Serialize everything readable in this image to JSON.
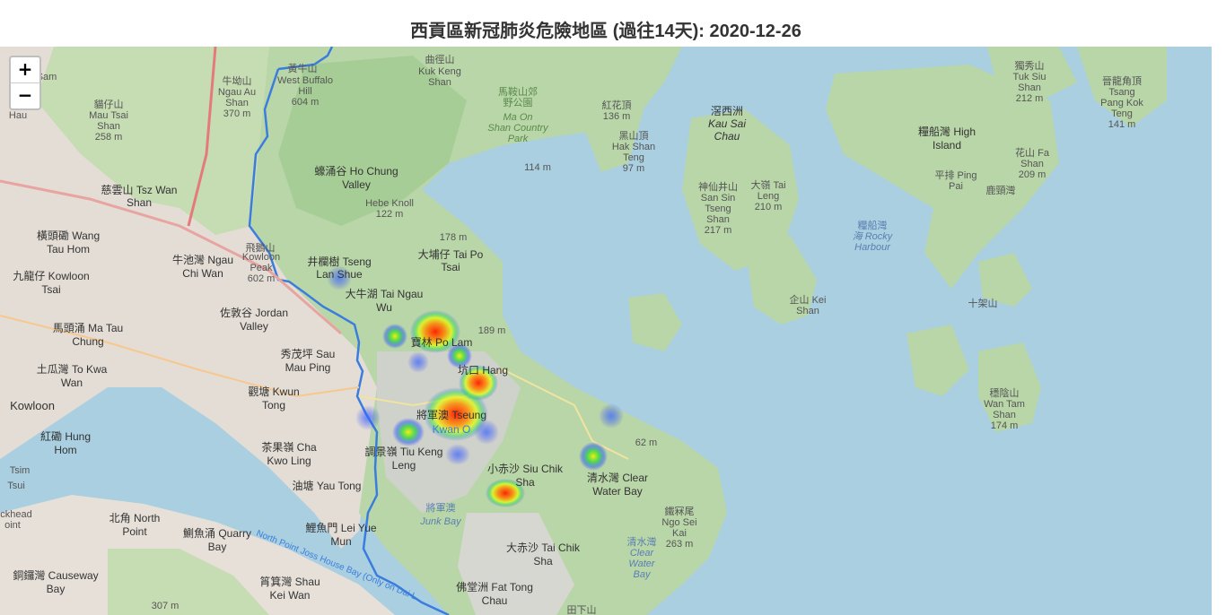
{
  "title": "西貢區新冠肺炎危險地區 (過往14天): 2020-12-26",
  "controls": {
    "zoom_in": "+",
    "zoom_out": "−"
  },
  "labels": {
    "l1": "黃牛山",
    "l2": "West Buffalo",
    "l3": "Hill",
    "l4": "604 m",
    "l5": "曲徑山",
    "l6": "Kuk Keng",
    "l7": "Shan",
    "l8": "馬鞍山郊",
    "l9": "野公園",
    "l10": "Ma On",
    "l11": "Shan Country",
    "l12": "Park",
    "l13": "紅花頂",
    "l14": "136 m",
    "l15": "黑山頂",
    "l16": "Hak Shan",
    "l17": "Teng",
    "l18": "97 m",
    "l19": "滘西洲",
    "l20": "Kau Sai",
    "l21": "Chau",
    "l22": "糧船灣 High",
    "l23": "Island",
    "l24": "獨秀山",
    "l25": "Tuk Siu",
    "l26": "Shan",
    "l27": "212 m",
    "l28": "晉龍角頂",
    "l29": "Tsang",
    "l30": "Pang Kok",
    "l31": "Teng",
    "l32": "141 m",
    "l33": "牛坳山",
    "l34": "Ngau Au",
    "l35": "Shan",
    "l36": "370 m",
    "l37": "貓仔山",
    "l38": "Mau Tsai",
    "l39": "Shan",
    "l40": "258 m",
    "l41": "慈雲山 Tsz Wan",
    "l42": "Shan",
    "l43": "蠔涌谷 Ho Chung",
    "l44": "Valley",
    "l45": "Hebe Knoll",
    "l46": "122 m",
    "l47": "神仙井山",
    "l48": "San Sin",
    "l49": "Tseng",
    "l50": "Shan",
    "l51": "217 m",
    "l52": "大嶺 Tai",
    "l53": "Leng",
    "l54": "210 m",
    "l55": "橫頭磡 Wang",
    "l56": "Tau Hom",
    "l57": "牛池灣 Ngau",
    "l58": "Chi Wan",
    "l59": "井欄樹 Tseng",
    "l60": "Lan Shue",
    "l61": "大埔仔 Tai Po",
    "l62": "Tsai",
    "l63": "九龍仔 Kowloon",
    "l64": "Tsai",
    "l65": "大牛湖 Tai Ngau",
    "l66": "Wu",
    "l67": "佐敦谷 Jordan",
    "l68": "Valley",
    "l69": "馬頭涌 Ma Tau",
    "l70": "Chung",
    "l71": "寶林 Po Lam",
    "l72": "坑口 Hang",
    "l73": "秀茂坪 Sau",
    "l74": "Mau Ping",
    "l75": "土瓜灣 To Kwa",
    "l76": "Wan",
    "l77": "觀塘 Kwun",
    "l78": "Tong",
    "l79": "將軍澳 Tseung",
    "l80": "Kwan O",
    "l81": "Kowloon",
    "l82": "紅磡 Hung",
    "l83": "Hom",
    "l84": "茶果嶺 Cha",
    "l85": "Kwo Ling",
    "l86": "調景嶺 Tiu Keng",
    "l87": "Leng",
    "l88": "小赤沙 Siu Chik",
    "l89": "Sha",
    "l90": "清水灣 Clear",
    "l91": "Water Bay",
    "l92": "油塘 Yau Tong",
    "l93": "將軍澳",
    "l94": "Junk Bay",
    "l95": "北角 North",
    "l96": "Point",
    "l97": "鰂魚涌 Quarry",
    "l98": "Bay",
    "l99": "鯉魚門 Lei Yue",
    "l100": "Mun",
    "l101": "大赤沙 Tai Chik",
    "l102": "Sha",
    "l103": "銅鑼灣 Causeway",
    "l104": "Bay",
    "l105": "筲箕灣 Shau",
    "l106": "Kei Wan",
    "l107": "佛堂洲 Fat Tong",
    "l108": "Chau",
    "l109": "糧船灣",
    "l110": "海 Rocky",
    "l111": "Harbour",
    "l112": "企山 Kei",
    "l113": "Shan",
    "l114": "十架山",
    "l115": "穩陰山",
    "l116": "Wan Tam",
    "l117": "Shan",
    "l118": "174 m",
    "l119": "花山 Fa",
    "l120": "Shan",
    "l121": "209 m",
    "l122": "平排 Ping",
    "l123": "Pai",
    "l124": "鹿頸灣",
    "l125": "鐵冧尾",
    "l126": "Ngo Sei",
    "l127": "Kai",
    "l128": "263 m",
    "l129": "清水灣",
    "l130": "Clear",
    "l131": "Water",
    "l132": "Bay",
    "l133": "North Point Joss House Bay (Only on Dai L",
    "l134": "Kowloon",
    "l135": "Peak",
    "l136": "602 m",
    "l137": "189 m",
    "l138": "178 m",
    "l139": "114 m",
    "l140": "62 m",
    "l141": "307 m",
    "l142": "田下山",
    "l143": "Sam",
    "l144": "Hau",
    "l145": "Tsim",
    "l146": "Tsui",
    "l147": "ckhead",
    "l148": "oint",
    "l149": "飛鵝山"
  },
  "icons": {
    "zoom_in": "plus-icon",
    "zoom_out": "minus-icon"
  },
  "colors": {
    "water": "#a9cfe0",
    "land": "#cfe3c0",
    "forest": "#aed1a0",
    "urban": "#e0dcd6",
    "district_border": "#3b7ddd",
    "heat_low": "#2a3cff",
    "heat_mid": "#37d13b",
    "heat_high": "#ff2a00"
  }
}
